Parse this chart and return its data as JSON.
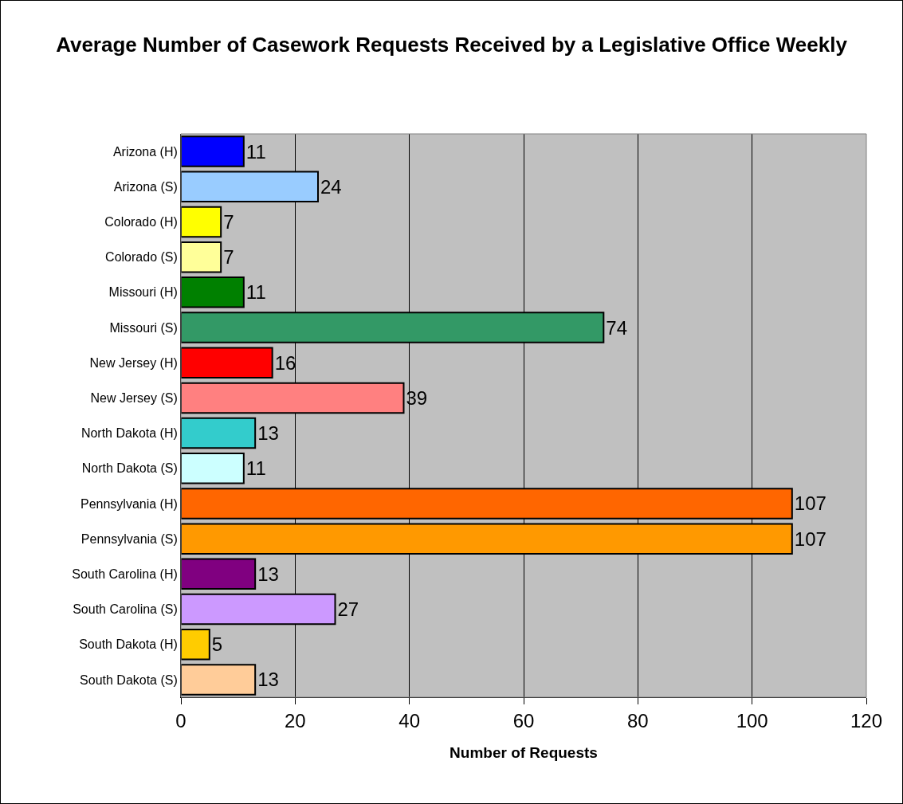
{
  "chart_data": {
    "type": "bar",
    "orientation": "horizontal",
    "title": "Average Number of Casework Requests Received by a Legislative Office Weekly",
    "xlabel": "Number of Requests",
    "categories": [
      "Arizona (H)",
      "Arizona (S)",
      "Colorado (H)",
      "Colorado (S)",
      "Missouri (H)",
      "Missouri (S)",
      "New Jersey (H)",
      "New Jersey (S)",
      "North Dakota (H)",
      "North Dakota (S)",
      "Pennsylvania (H)",
      "Pennsylvania (S)",
      "South Carolina (H)",
      "South Carolina (S)",
      "South Dakota (H)",
      "South Dakota (S)"
    ],
    "values": [
      11,
      24,
      7,
      7,
      11,
      74,
      16,
      39,
      13,
      11,
      107,
      107,
      13,
      27,
      5,
      13
    ],
    "colors": [
      "#0000ff",
      "#99ccff",
      "#ffff00",
      "#ffff99",
      "#008000",
      "#339966",
      "#ff0000",
      "#ff8080",
      "#33cccc",
      "#ccffff",
      "#ff6600",
      "#ff9900",
      "#800080",
      "#cc99ff",
      "#ffcc00",
      "#ffcc99"
    ],
    "xlim": [
      0,
      120
    ],
    "xticks": [
      0,
      20,
      40,
      60,
      80,
      100,
      120
    ],
    "grid": "x",
    "data_labels": true,
    "legend": false
  }
}
